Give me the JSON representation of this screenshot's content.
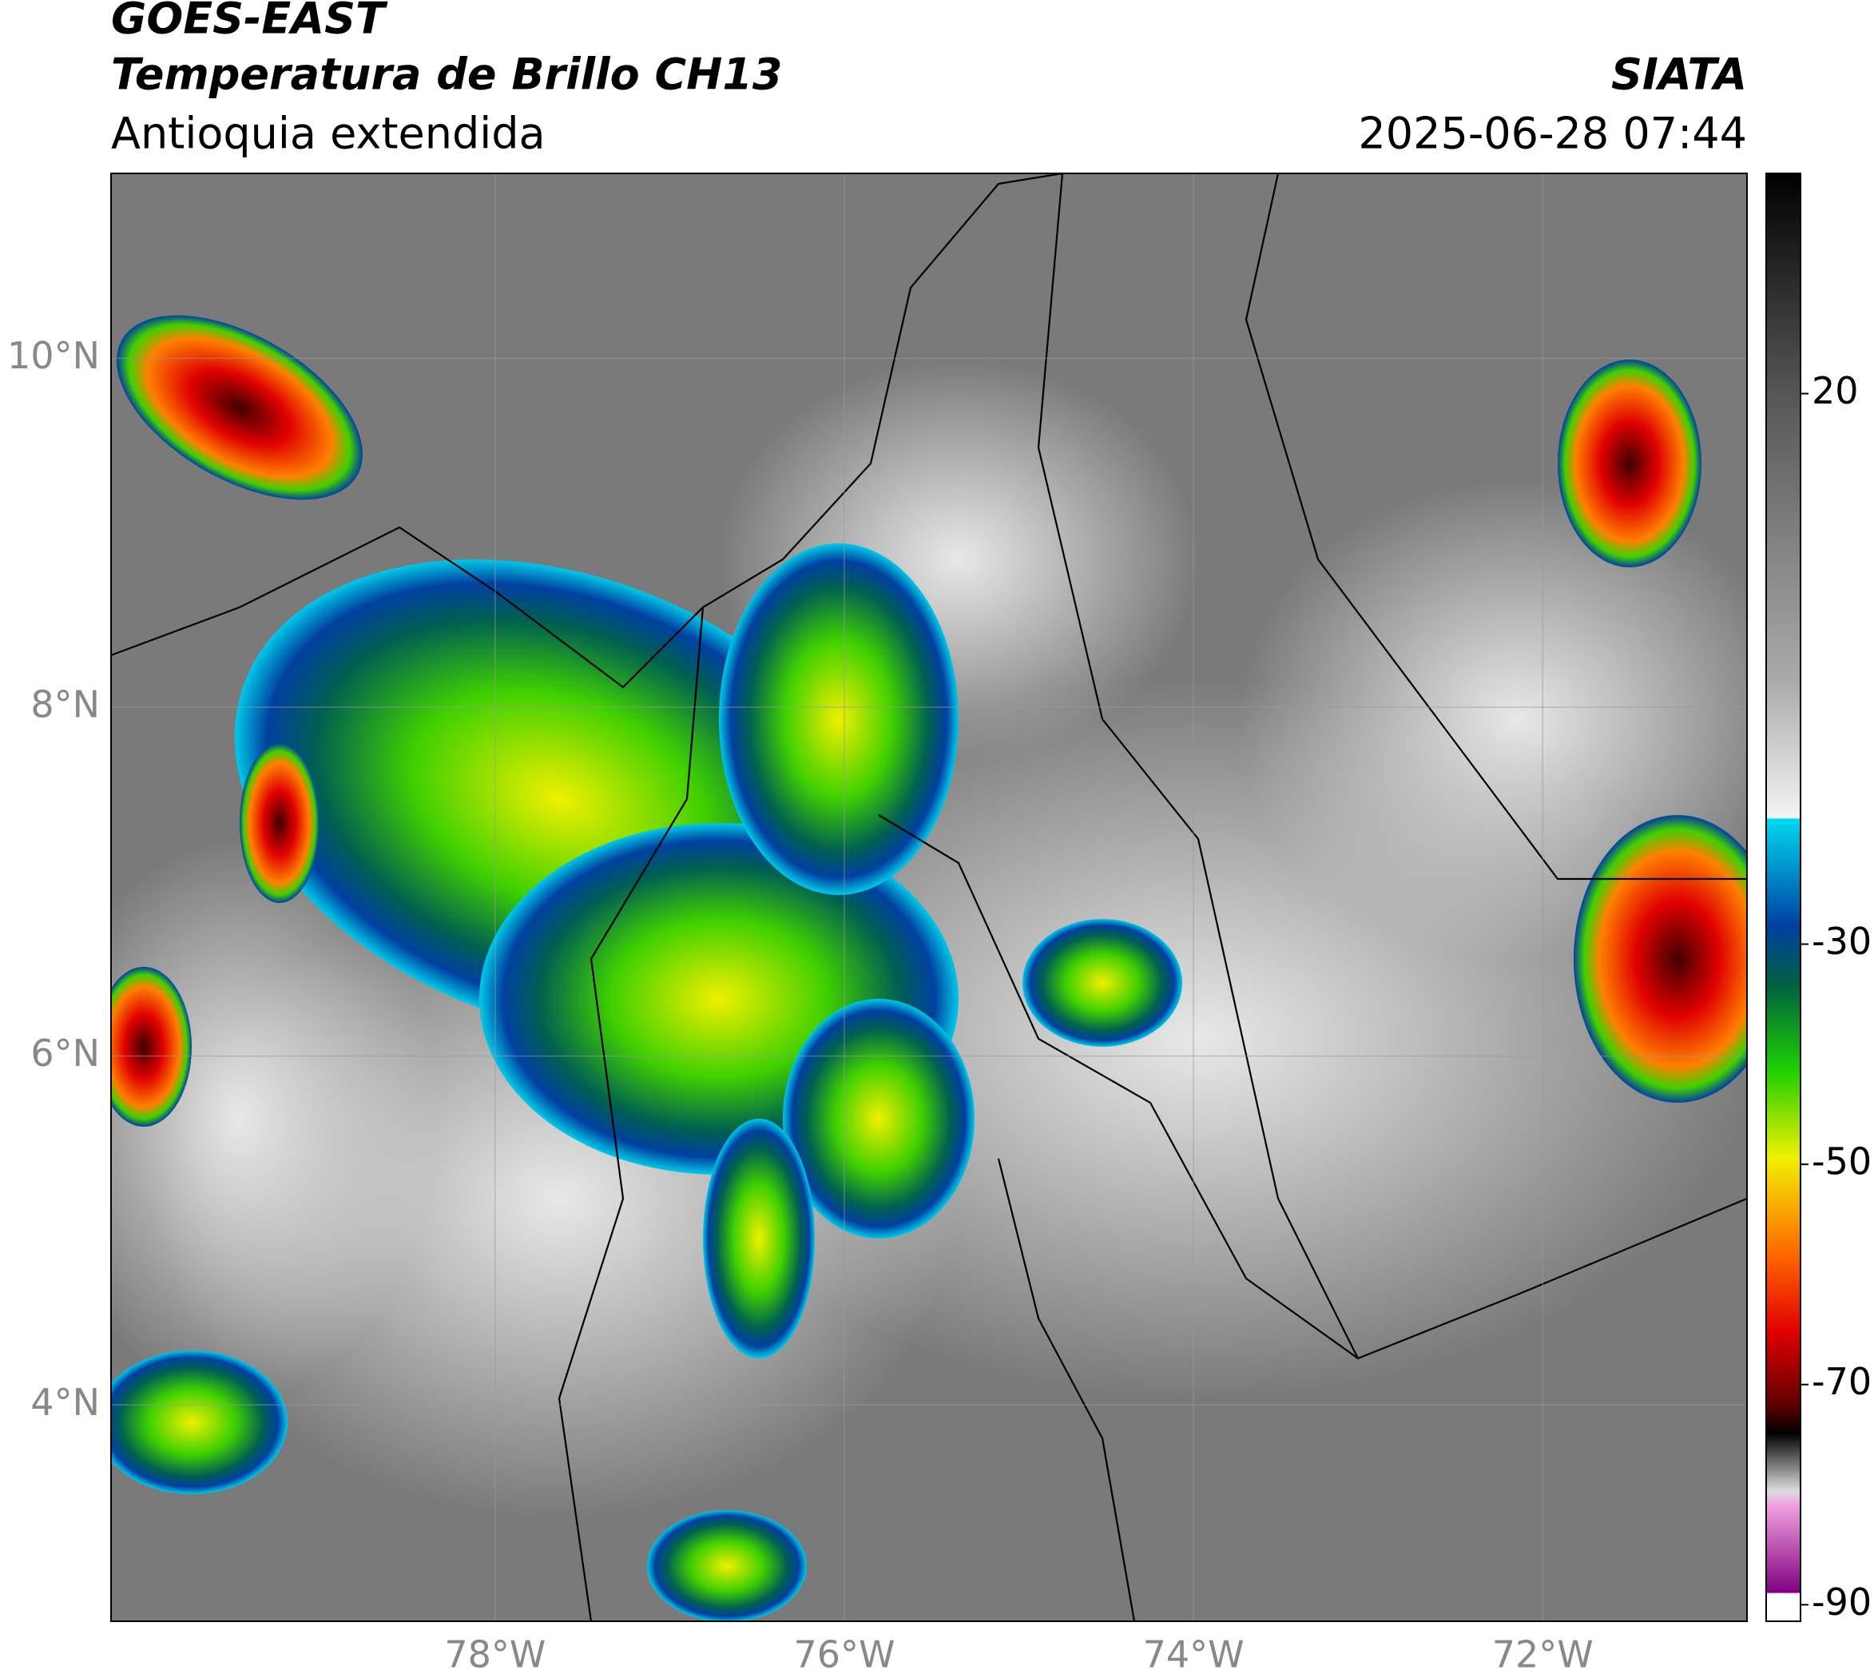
{
  "header": {
    "satellite": "GOES-EAST",
    "title": "Temperatura de Brillo CH13",
    "region": "Antioquia extendida",
    "organization": "SIATA",
    "datetime": "2025-06-28 07:44"
  },
  "map": {
    "xlim": [
      -80.2,
      -70.83
    ],
    "ylim": [
      2.76,
      11.06
    ],
    "grid": true,
    "xticks": [
      {
        "value": -78,
        "label": "78°W"
      },
      {
        "value": -76,
        "label": "76°W"
      },
      {
        "value": -74,
        "label": "74°W"
      },
      {
        "value": -72,
        "label": "72°W"
      }
    ],
    "yticks": [
      {
        "value": 10,
        "label": "10°N"
      },
      {
        "value": 8,
        "label": "8°N"
      },
      {
        "value": 6,
        "label": "6°N"
      },
      {
        "value": 4,
        "label": "4°N"
      }
    ]
  },
  "colorbar": {
    "lim": [
      -91.5,
      40
    ],
    "ticks": [
      20,
      -30,
      -50,
      -70,
      -90
    ]
  }
}
